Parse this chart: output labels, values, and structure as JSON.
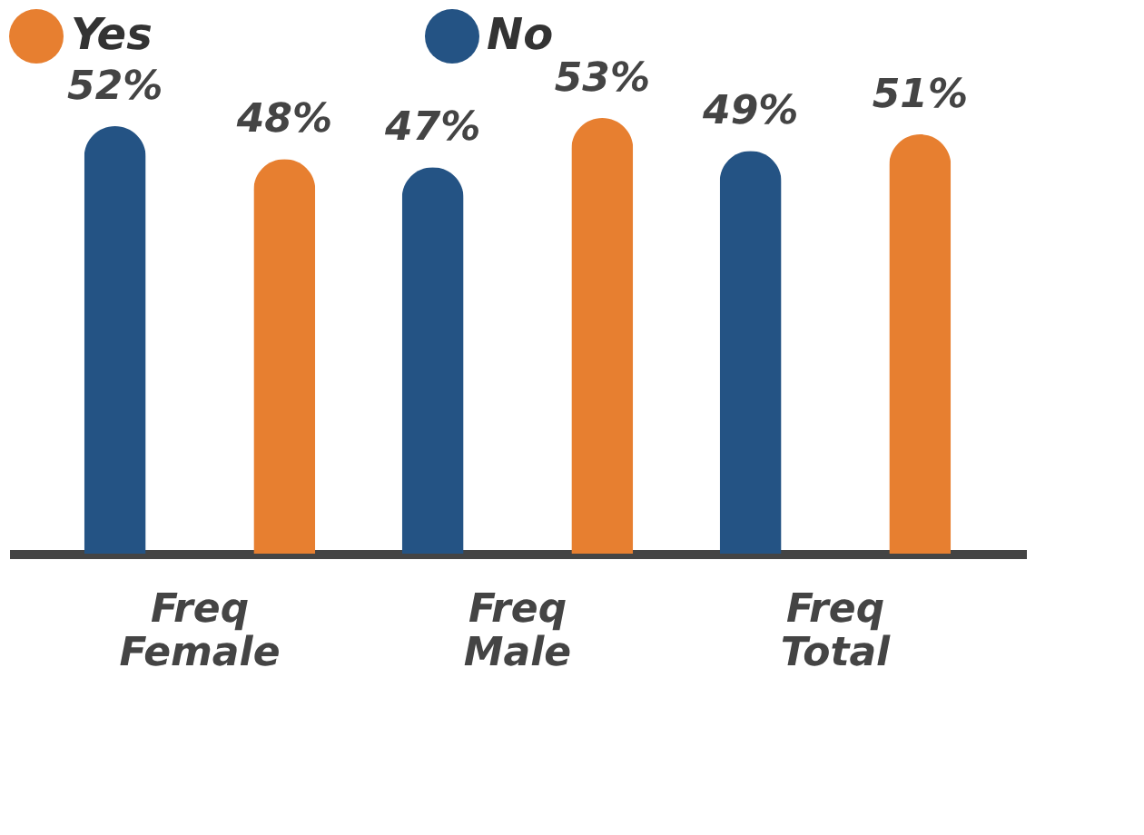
{
  "chart_data": {
    "type": "bar",
    "categories": [
      "Freq Female",
      "Freq Male",
      "Freq Total"
    ],
    "series": [
      {
        "name": "Yes",
        "color": "#e77f30",
        "values": [
          48,
          53,
          51
        ],
        "value_labels": [
          "48%",
          "53%",
          "51%"
        ]
      },
      {
        "name": "No",
        "color": "#245384",
        "values": [
          52,
          47,
          49
        ],
        "value_labels": [
          "52%",
          "47%",
          "49%"
        ]
      }
    ],
    "legend": "top left",
    "grid": false
  }
}
